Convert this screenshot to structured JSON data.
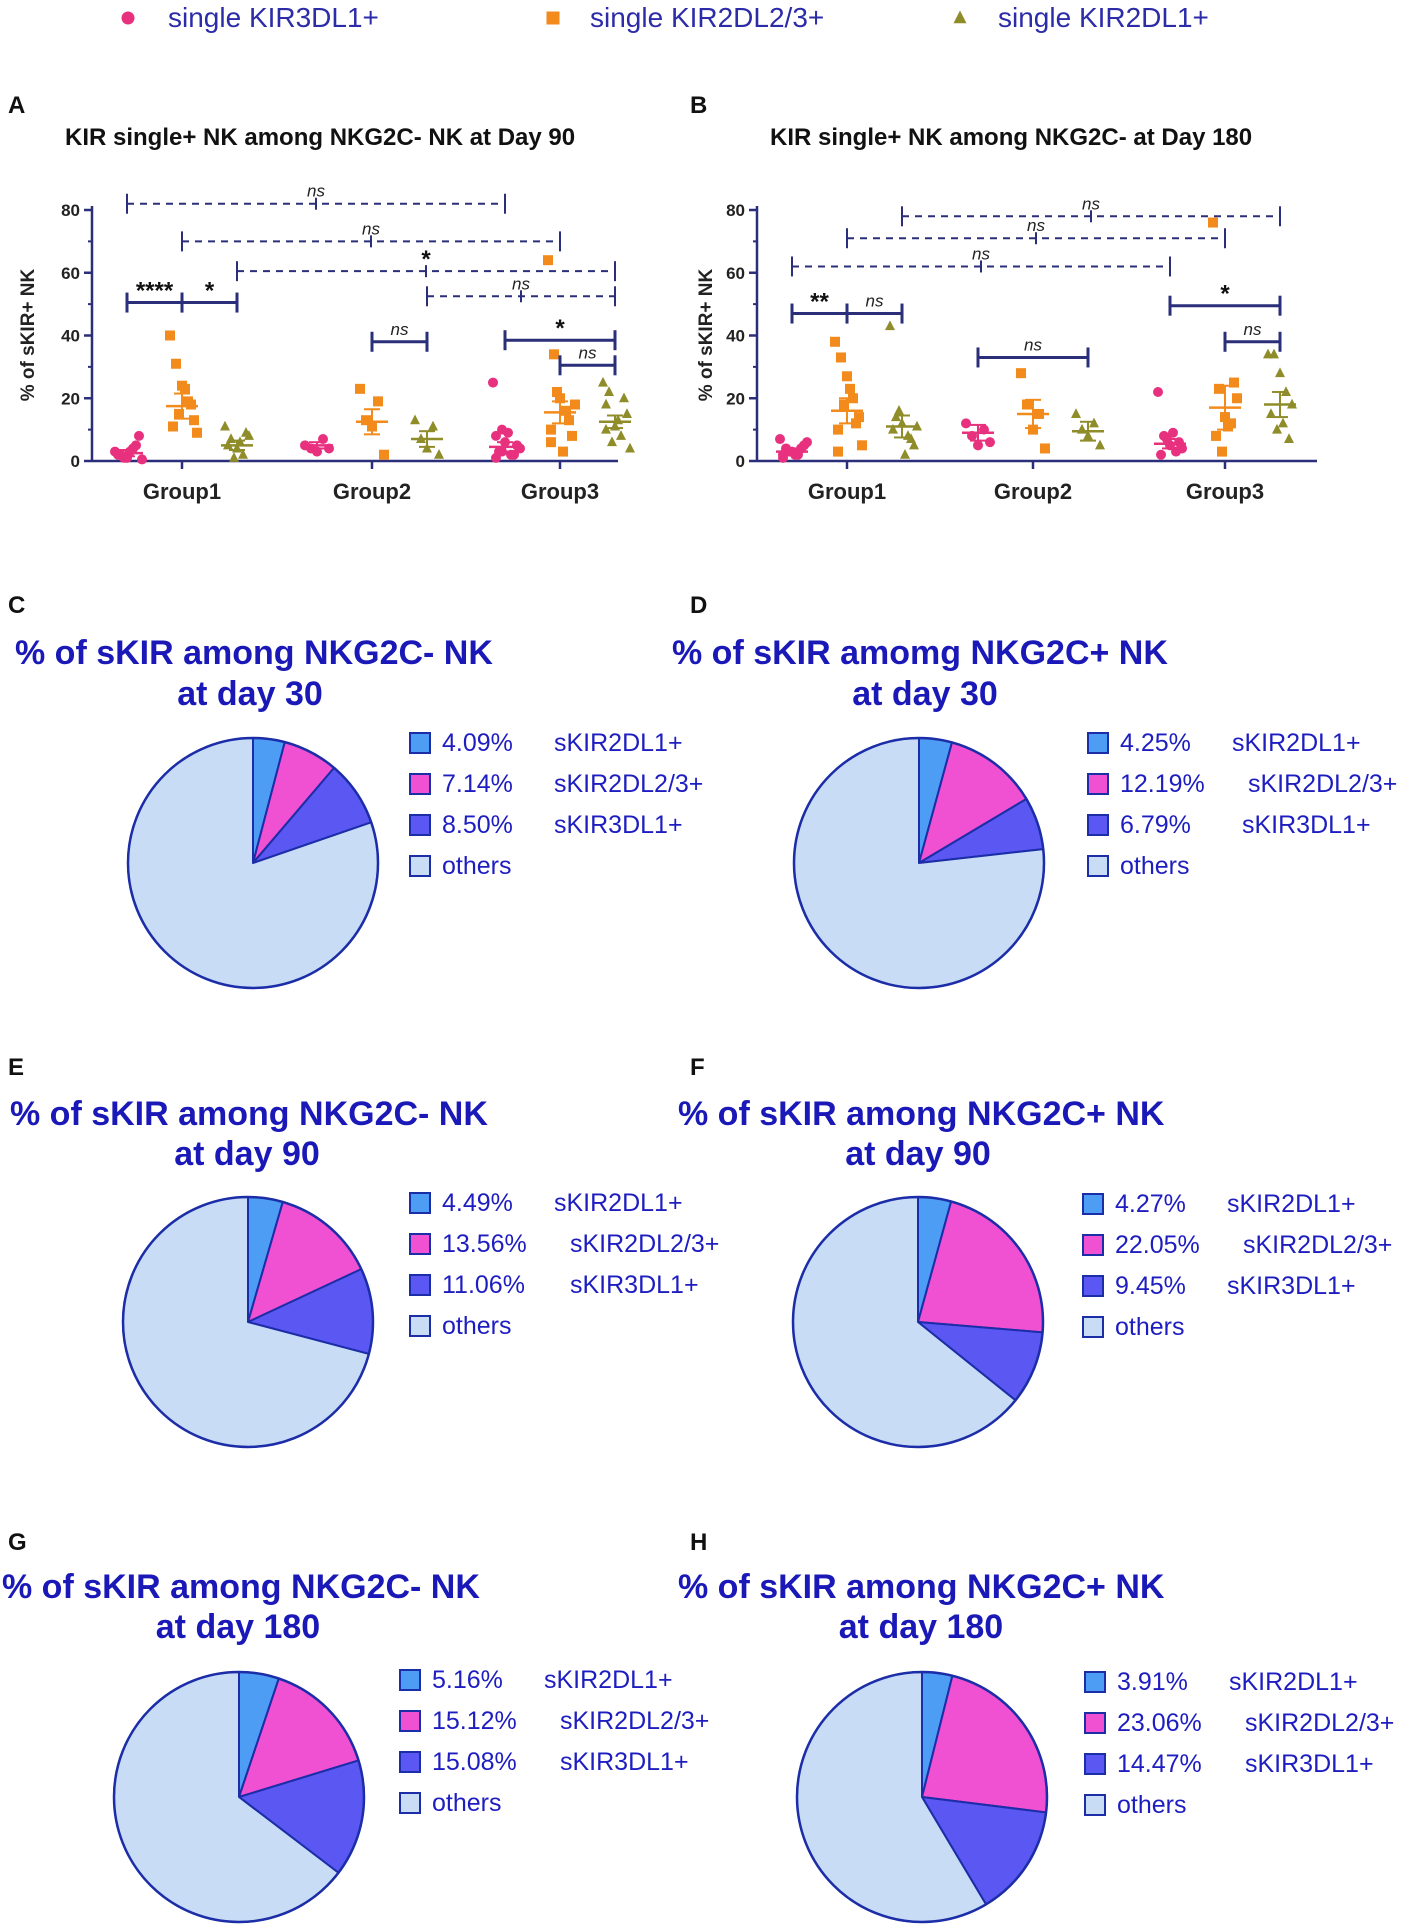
{
  "colors": {
    "kir3dl1": "#e8317e",
    "kir2dl23": "#f28a1c",
    "kir2dl1": "#8f8c2a",
    "axis": "#2b2f7a",
    "pie_2dl1": "#4d9df5",
    "pie_2dl23": "#f050d2",
    "pie_3dl1": "#5b57f2",
    "pie_others": "#c8dcf6",
    "pie_outline": "#1c2da8",
    "title_blue": "#1a19b8"
  },
  "legend": {
    "items": [
      {
        "label": "single KIR3DL1+",
        "marker": "circle",
        "color": "#e8317e"
      },
      {
        "label": "single KIR2DL2/3+",
        "marker": "square",
        "color": "#f28a1c"
      },
      {
        "label": "single KIR2DL1+",
        "marker": "triangle",
        "color": "#8f8c2a"
      }
    ]
  },
  "chart_data": [
    {
      "panel": "A",
      "type": "scatter",
      "title": "KIR single+ NK among NKG2C- NK at Day 90",
      "ylabel": "% of sKIR+ NK",
      "ylim": [
        0,
        80
      ],
      "yticks": [
        "0",
        "20",
        "40",
        "60",
        "80"
      ],
      "categories": [
        "Group1",
        "Group2",
        "Group3"
      ],
      "series": [
        {
          "name": "single KIR3DL1+",
          "marker": "circle",
          "mean": [
            2.5,
            5,
            4.5
          ],
          "sem": [
            1,
            1,
            1.5
          ],
          "points": [
            [
              3,
              2,
              1,
              4,
              8,
              2,
              1,
              3,
              5,
              0.5
            ],
            [
              5,
              4,
              3,
              7,
              4
            ],
            [
              25,
              3,
              6,
              2,
              5,
              8,
              3,
              9,
              2,
              4,
              1,
              10
            ]
          ]
        },
        {
          "name": "single KIR2DL2/3+",
          "marker": "square",
          "mean": [
            17.5,
            12.5,
            15.5
          ],
          "sem": [
            4,
            4,
            3.5
          ],
          "points": [
            [
              40,
              31,
              24,
              19,
              13,
              11,
              15,
              23,
              18,
              9
            ],
            [
              23,
              13,
              11,
              19,
              2
            ],
            [
              64,
              34,
              20,
              16,
              8,
              10,
              22,
              3,
              13,
              18,
              6
            ]
          ]
        },
        {
          "name": "single KIR2DL1+",
          "marker": "triangle",
          "mean": [
            5,
            7,
            12.5
          ],
          "sem": [
            1.5,
            2.5,
            2
          ],
          "points": [
            [
              11,
              7,
              4,
              2,
              8,
              5,
              1,
              6,
              9
            ],
            [
              13,
              7,
              4,
              11,
              2
            ],
            [
              25,
              22,
              11,
              8,
              15,
              18,
              6,
              13,
              20,
              4,
              10
            ]
          ]
        }
      ],
      "annotations": [
        {
          "label": "ns",
          "y": 82,
          "x1": "Group1:KIR3DL1",
          "x2": "Group3:KIR3DL1",
          "style": "dashed"
        },
        {
          "label": "ns",
          "y": 70,
          "x1": "Group1:KIR2DL2/3",
          "x2": "Group3:KIR2DL2/3",
          "style": "dashed"
        },
        {
          "label": "*",
          "y": 60.5,
          "x1": "Group1:KIR2DL1",
          "x2": "Group3:KIR2DL1",
          "style": "dashed"
        },
        {
          "label": "ns",
          "y": 52.5,
          "x1": "Group2:KIR2DL1",
          "x2": "Group3:KIR2DL1",
          "style": "dashed"
        },
        {
          "label": "****",
          "y": 50.5,
          "x1": "Group1:KIR3DL1",
          "x2": "Group1:KIR2DL2/3",
          "style": "solid"
        },
        {
          "label": "*",
          "y": 50.5,
          "x1": "Group1:KIR2DL2/3",
          "x2": "Group1:KIR2DL1",
          "style": "solid"
        },
        {
          "label": "ns",
          "y": 38,
          "x1": "Group2:KIR2DL2/3",
          "x2": "Group2:KIR2DL1",
          "style": "solid"
        },
        {
          "label": "*",
          "y": 38.5,
          "x1": "Group3:KIR3DL1",
          "x2": "Group3:KIR2DL1",
          "style": "solid"
        },
        {
          "label": "ns",
          "y": 30.5,
          "x1": "Group3:KIR2DL2/3",
          "x2": "Group3:KIR2DL1",
          "style": "solid"
        }
      ]
    },
    {
      "panel": "B",
      "type": "scatter",
      "title": "KIR single+ NK among NKG2C- at Day 180",
      "ylabel": "% of sKIR+ NK",
      "ylim": [
        0,
        80
      ],
      "yticks": [
        "0",
        "20",
        "40",
        "60",
        "80"
      ],
      "categories": [
        "Group1",
        "Group2",
        "Group3"
      ],
      "series": [
        {
          "name": "single KIR3DL1+",
          "marker": "circle",
          "mean": [
            3,
            9,
            5.5
          ],
          "sem": [
            1,
            2.5,
            1.5
          ],
          "points": [
            [
              7,
              4,
              3,
              2,
              5,
              1,
              3,
              2,
              4,
              6,
              2
            ],
            [
              12,
              8,
              5,
              10,
              6
            ],
            [
              22,
              8,
              5,
              3,
              4,
              2,
              7,
              9,
              6
            ]
          ]
        },
        {
          "name": "single KIR2DL2/3+",
          "marker": "square",
          "mean": [
            16,
            15,
            17
          ],
          "sem": [
            4,
            4.5,
            7
          ],
          "points": [
            [
              38,
              33,
              27,
              20,
              14,
              10,
              18,
              23,
              12,
              5,
              3
            ],
            [
              28,
              18,
              10,
              15,
              4
            ],
            [
              76,
              23,
              14,
              12,
              20,
              8,
              3,
              11,
              25
            ]
          ]
        },
        {
          "name": "single KIR2DL1+",
          "marker": "triangle",
          "mean": [
            11,
            9.5,
            18
          ],
          "sem": [
            3.5,
            3,
            4
          ],
          "points": [
            [
              43,
              14,
              12,
              8,
              5,
              10,
              16,
              2,
              7,
              11
            ],
            [
              15,
              10,
              8,
              12,
              5
            ],
            [
              34,
              34,
              28,
              22,
              18,
              15,
              10,
              12,
              7
            ]
          ]
        }
      ],
      "annotations": [
        {
          "label": "ns",
          "y": 78,
          "x1": "Group1:KIR2DL1",
          "x2": "Group3:KIR2DL1",
          "style": "dashed"
        },
        {
          "label": "ns",
          "y": 71,
          "x1": "Group1:KIR2DL2/3",
          "x2": "Group3:KIR2DL2/3",
          "style": "dashed"
        },
        {
          "label": "ns",
          "y": 62,
          "x1": "Group1:KIR3DL1",
          "x2": "Group3:KIR3DL1",
          "style": "dashed"
        },
        {
          "label": "**",
          "y": 47,
          "x1": "Group1:KIR3DL1",
          "x2": "Group1:KIR2DL2/3",
          "style": "solid"
        },
        {
          "label": "ns",
          "y": 47,
          "x1": "Group1:KIR2DL2/3",
          "x2": "Group1:KIR2DL1",
          "style": "solid"
        },
        {
          "label": "ns",
          "y": 33,
          "x1": "Group2:KIR3DL1",
          "x2": "Group2:KIR2DL1",
          "style": "solid"
        },
        {
          "label": "*",
          "y": 49.5,
          "x1": "Group3:KIR3DL1",
          "x2": "Group3:KIR2DL1",
          "style": "solid"
        },
        {
          "label": "ns",
          "y": 38,
          "x1": "Group3:KIR2DL2/3",
          "x2": "Group3:KIR2DL1",
          "style": "solid"
        }
      ]
    },
    {
      "panel": "C",
      "type": "pie",
      "title": [
        "% of sKIR among NKG2C- NK",
        "at day 30"
      ],
      "slices": [
        {
          "pct": 4.09,
          "value": "4.09%",
          "name": "sKIR2DL1+",
          "color": "#4d9df5"
        },
        {
          "pct": 7.14,
          "value": "7.14%",
          "name": "sKIR2DL2/3+",
          "color": "#f050d2"
        },
        {
          "pct": 8.5,
          "value": "8.50%",
          "name": "sKIR3DL1+",
          "color": "#5b57f2"
        },
        {
          "pct": 80.27,
          "value": "",
          "name": "others",
          "color": "#c8dcf6"
        }
      ]
    },
    {
      "panel": "D",
      "type": "pie",
      "title": [
        "% of sKIR  amomg NKG2C+ NK",
        "at day 30"
      ],
      "slices": [
        {
          "pct": 4.25,
          "value": "4.25%",
          "name": "sKIR2DL1+",
          "color": "#4d9df5"
        },
        {
          "pct": 12.19,
          "value": "12.19%",
          "name": "sKIR2DL2/3+",
          "color": "#f050d2"
        },
        {
          "pct": 6.79,
          "value": " 6.79%",
          "name": "sKIR3DL1+",
          "color": "#5b57f2"
        },
        {
          "pct": 76.77,
          "value": "",
          "name": "others",
          "color": "#c8dcf6"
        }
      ]
    },
    {
      "panel": "E",
      "type": "pie",
      "title": [
        "% of sKIR among NKG2C- NK",
        "at day 90"
      ],
      "slices": [
        {
          "pct": 4.49,
          "value": "4.49%",
          "name": "sKIR2DL1+",
          "color": "#4d9df5"
        },
        {
          "pct": 13.56,
          "value": "13.56%",
          "name": "sKIR2DL2/3+",
          "color": "#f050d2"
        },
        {
          "pct": 11.06,
          "value": "11.06%",
          "name": "sKIR3DL1+",
          "color": "#5b57f2"
        },
        {
          "pct": 70.89,
          "value": "",
          "name": "others",
          "color": "#c8dcf6"
        }
      ]
    },
    {
      "panel": "F",
      "type": "pie",
      "title": [
        "% of sKIR among NKG2C+ NK",
        "at day 90"
      ],
      "slices": [
        {
          "pct": 4.27,
          "value": "4.27%",
          "name": "sKIR2DL1+",
          "color": "#4d9df5"
        },
        {
          "pct": 22.05,
          "value": "22.05%",
          "name": "sKIR2DL2/3+",
          "color": "#f050d2"
        },
        {
          "pct": 9.45,
          "value": "9.45%",
          "name": "sKIR3DL1+",
          "color": "#5b57f2"
        },
        {
          "pct": 64.23,
          "value": "",
          "name": "others",
          "color": "#c8dcf6"
        }
      ]
    },
    {
      "panel": "G",
      "type": "pie",
      "title": [
        "% of sKIR among NKG2C- NK",
        "at day 180"
      ],
      "slices": [
        {
          "pct": 5.16,
          "value": "5.16%",
          "name": "sKIR2DL1+",
          "color": "#4d9df5"
        },
        {
          "pct": 15.12,
          "value": "15.12%",
          "name": "sKIR2DL2/3+",
          "color": "#f050d2"
        },
        {
          "pct": 15.08,
          "value": "15.08%",
          "name": "sKIR3DL1+",
          "color": "#5b57f2"
        },
        {
          "pct": 64.64,
          "value": "",
          "name": "others",
          "color": "#c8dcf6"
        }
      ]
    },
    {
      "panel": "H",
      "type": "pie",
      "title": [
        "% of sKIR among NKG2C+ NK",
        "at day 180"
      ],
      "slices": [
        {
          "pct": 3.91,
          "value": "3.91%",
          "name": "sKIR2DL1+",
          "color": "#4d9df5"
        },
        {
          "pct": 23.06,
          "value": "23.06%",
          "name": "sKIR2DL2/3+",
          "color": "#f050d2"
        },
        {
          "pct": 14.47,
          "value": "14.47%",
          "name": "sKIR3DL1+",
          "color": "#5b57f2"
        },
        {
          "pct": 58.56,
          "value": "",
          "name": "others",
          "color": "#c8dcf6"
        }
      ]
    }
  ]
}
